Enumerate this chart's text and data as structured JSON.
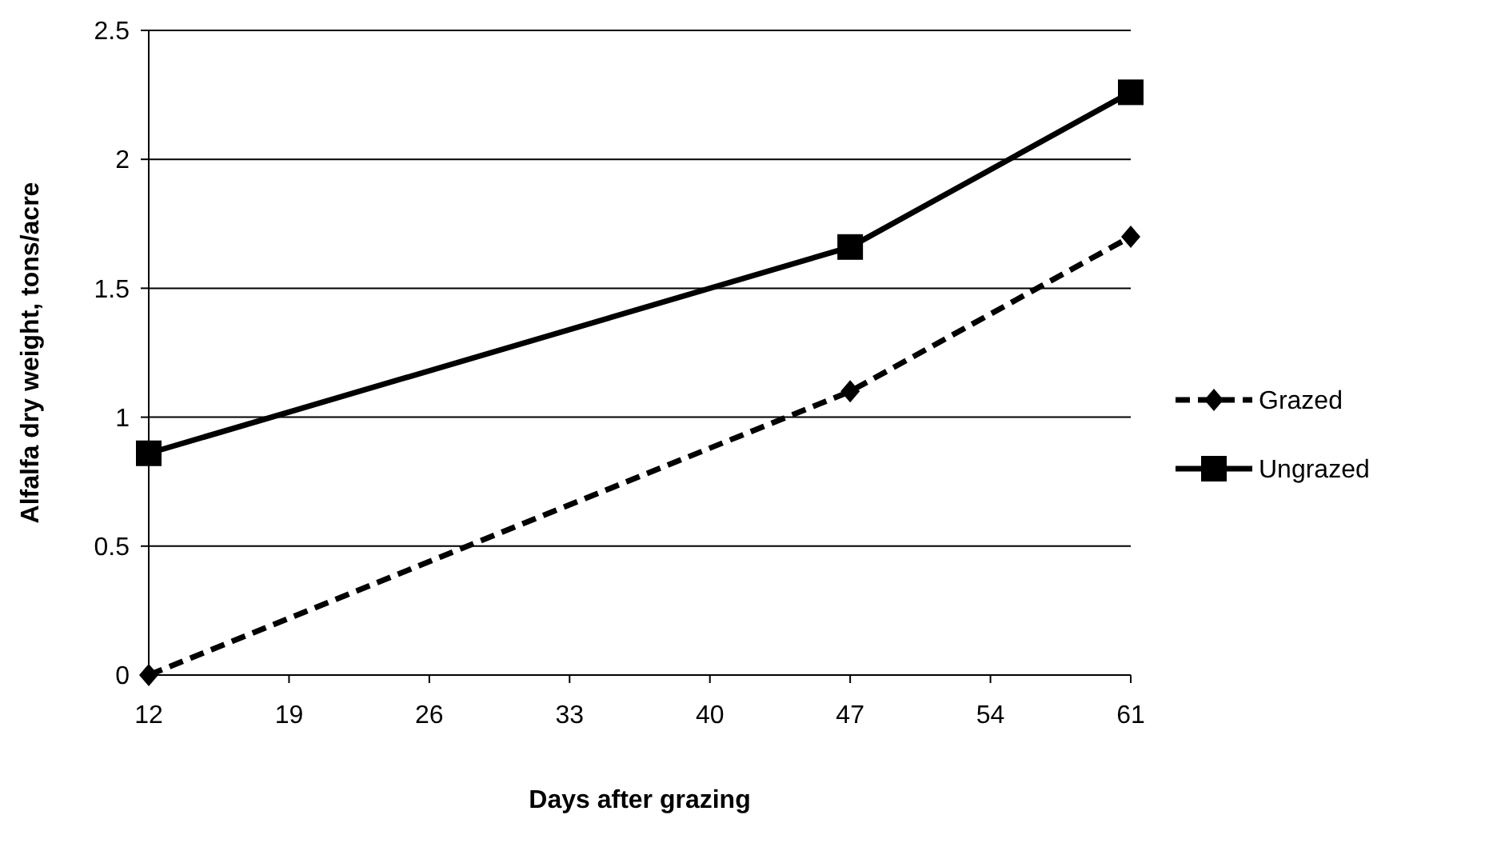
{
  "chart_data": {
    "type": "line",
    "xlabel": "Days after grazing",
    "ylabel": "Alfalfa dry weight, tons/acre",
    "xlim": [
      12,
      61
    ],
    "xticks": [
      12,
      19,
      26,
      33,
      40,
      47,
      54,
      61
    ],
    "ylim": [
      0,
      2.5
    ],
    "yticks": [
      0,
      0.5,
      1,
      1.5,
      2,
      2.5
    ],
    "grid": "y",
    "legend": "right",
    "series": [
      {
        "name": "Grazed",
        "color": "#000000",
        "x": [
          12,
          47,
          61
        ],
        "values": [
          0,
          1.1,
          1.7
        ],
        "marker": "diamond",
        "line_style": "dashed"
      },
      {
        "name": "Ungrazed",
        "color": "#000000",
        "x": [
          12,
          47,
          61
        ],
        "values": [
          0.86,
          1.66,
          2.26
        ],
        "marker": "square",
        "line_style": "solid"
      }
    ]
  }
}
